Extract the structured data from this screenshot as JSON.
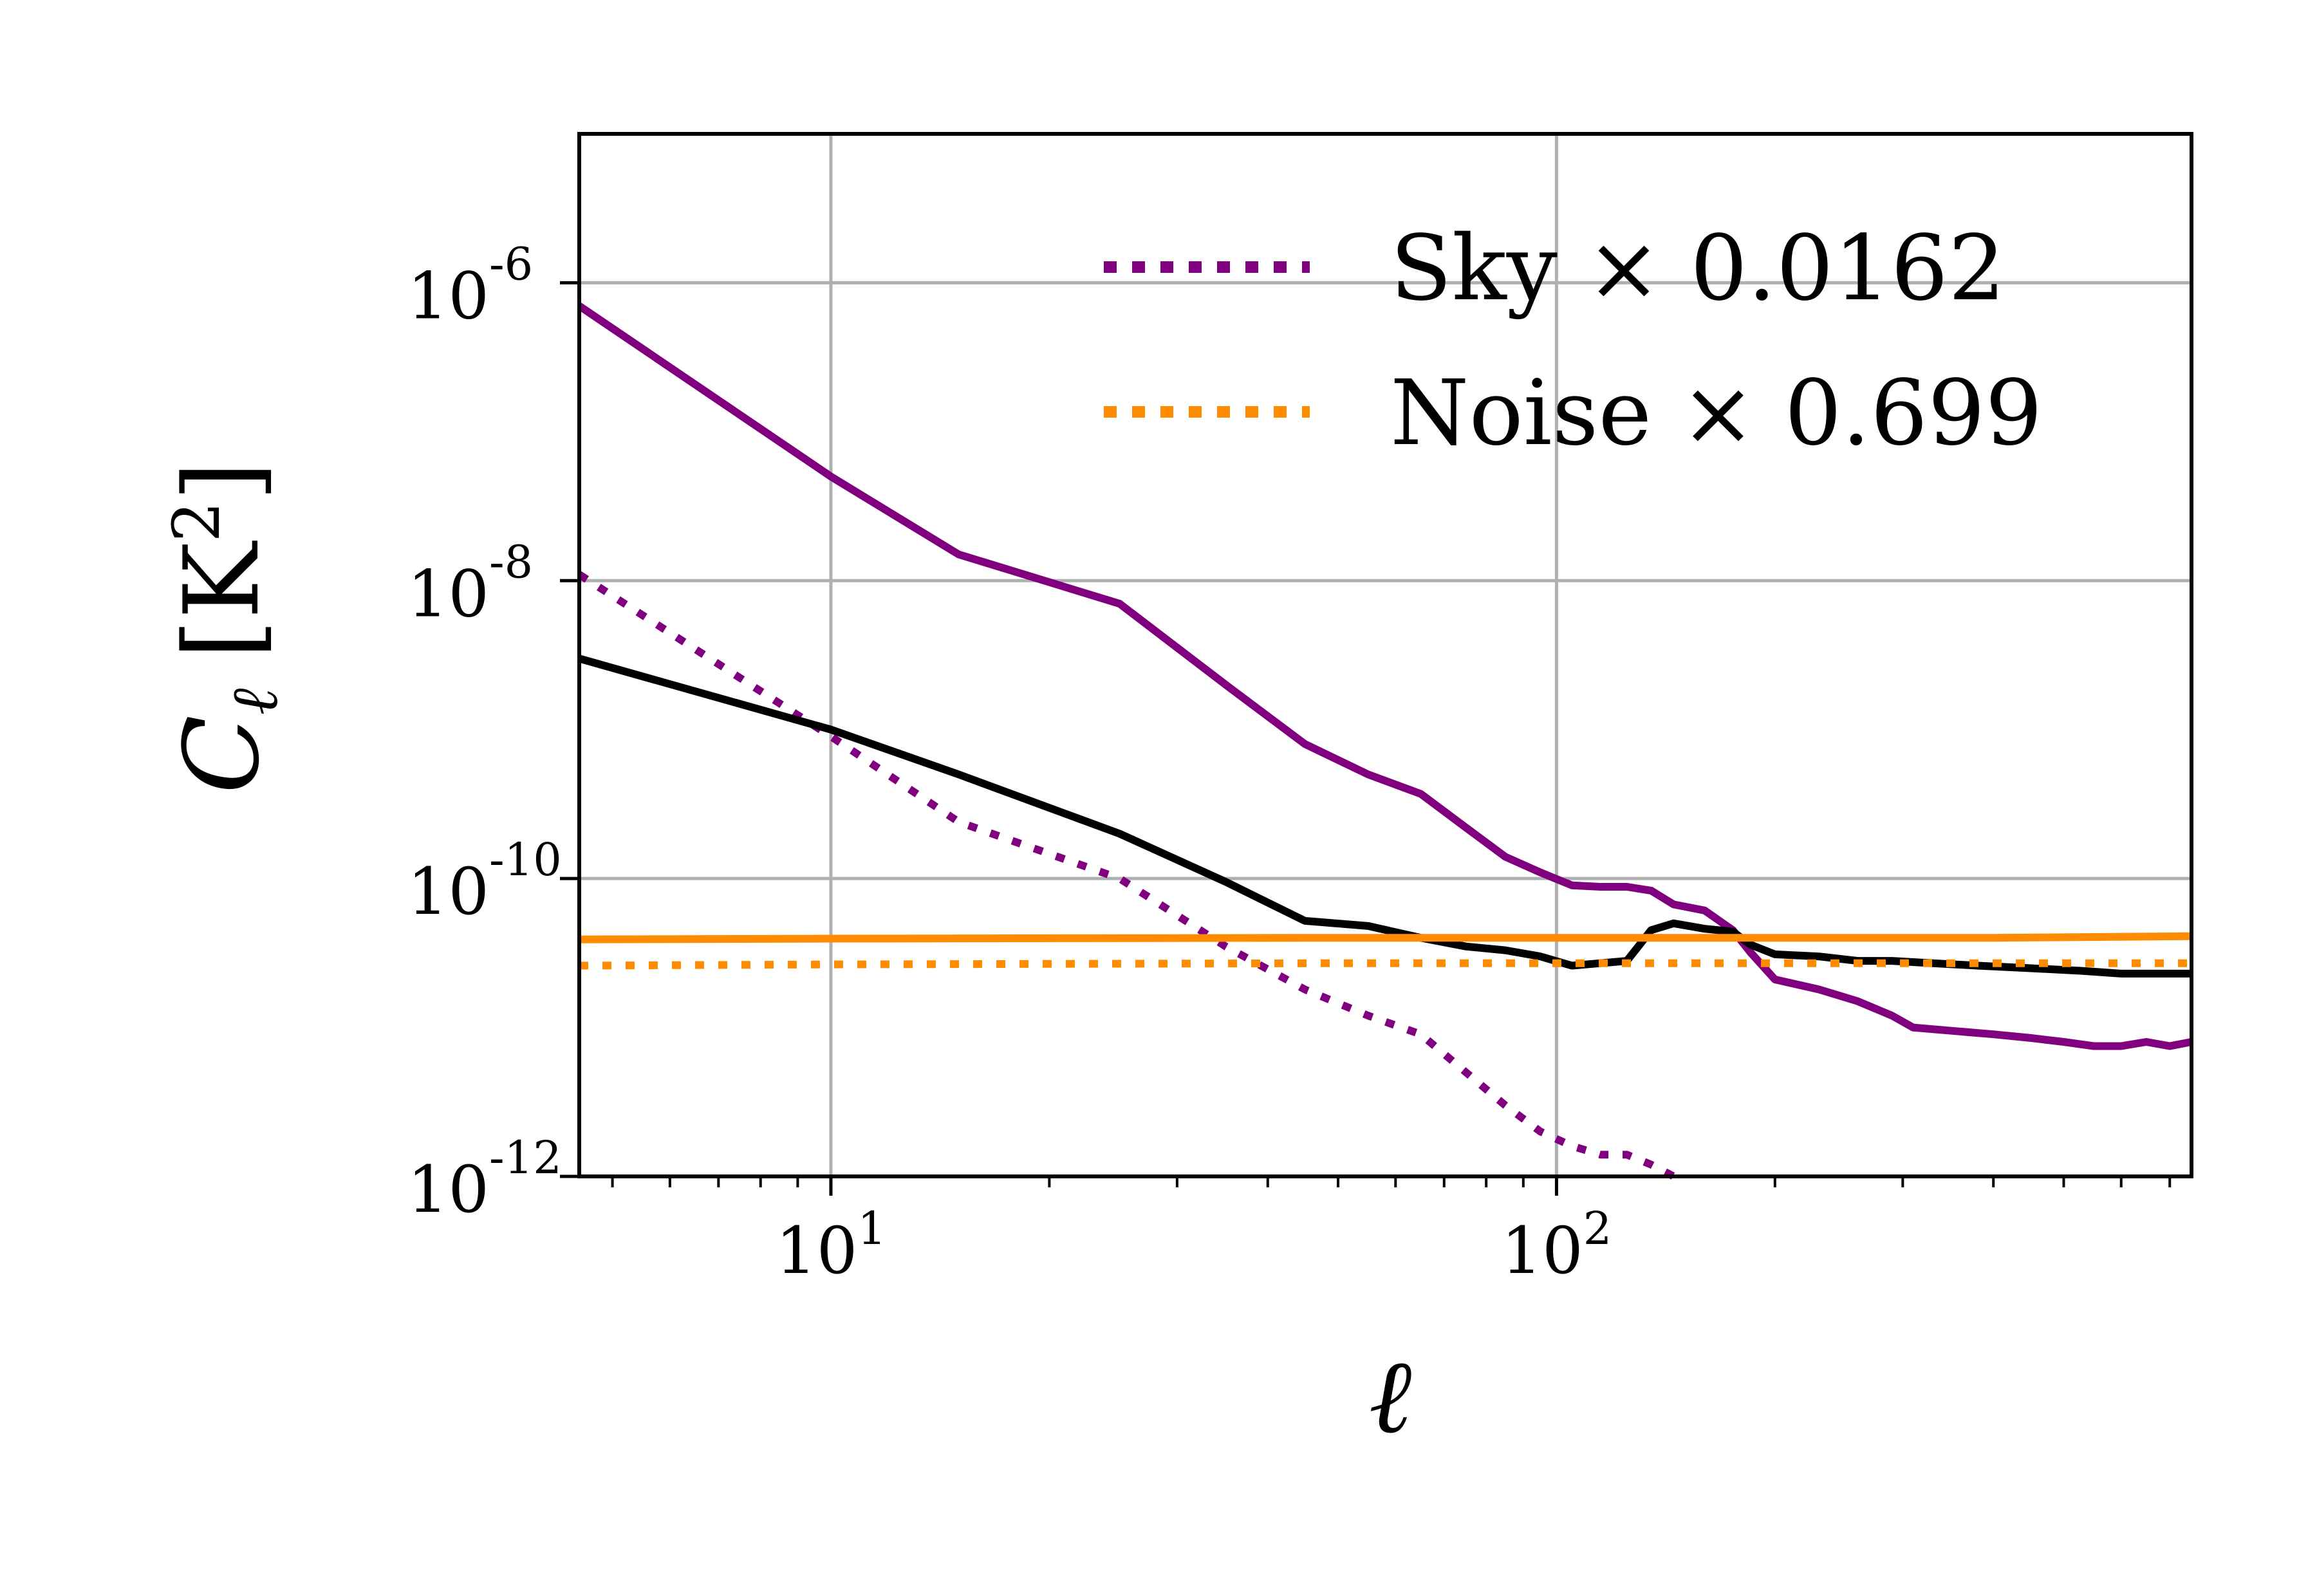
{
  "chart_data": {
    "type": "line",
    "xscale": "log",
    "yscale": "log",
    "xlim": [
      4.5,
      750
    ],
    "ylim": [
      1e-12,
      1e-05
    ],
    "grid": true,
    "legend_position": "top-right",
    "xlabel": "ℓ",
    "ylabel_main": "C",
    "ylabel_sub": "ℓ",
    "ylabel_unit": "[K",
    "ylabel_unit_sup": "2",
    "ylabel_unit_close": "]",
    "x_ticks": [
      {
        "value": 10,
        "base": "10",
        "exp": "1"
      },
      {
        "value": 100,
        "base": "10",
        "exp": "2"
      }
    ],
    "y_ticks": [
      {
        "value": 1e-06,
        "base": "10",
        "exp": "-6"
      },
      {
        "value": 1e-08,
        "base": "10",
        "exp": "-8"
      },
      {
        "value": 1e-10,
        "base": "10",
        "exp": "-10"
      },
      {
        "value": 1e-12,
        "base": "10",
        "exp": "-12"
      }
    ],
    "legend": [
      {
        "label": "Sky × 0.0162",
        "color": "#800080",
        "style": "dotted"
      },
      {
        "label": "Noise × 0.699",
        "color": "#ff8c00",
        "style": "dotted"
      }
    ],
    "series": [
      {
        "color": "#800080",
        "style": "solid",
        "x": [
          4.5,
          10,
          15,
          25,
          35,
          45,
          55,
          65,
          75,
          85,
          95,
          105,
          115,
          125,
          135,
          145,
          160,
          175,
          185,
          200,
          230,
          260,
          290,
          310,
          350,
          400,
          450,
          500,
          550,
          600,
          650,
          700,
          750
        ],
        "y": [
          7e-07,
          5e-08,
          1.5e-08,
          7e-09,
          2e-09,
          8e-10,
          5e-10,
          3.7e-10,
          2.2e-10,
          1.4e-10,
          1.1e-10,
          9e-11,
          8.8e-11,
          8.8e-11,
          8.3e-11,
          6.7e-11,
          6.1e-11,
          4.5e-11,
          3.2e-11,
          2.1e-11,
          1.8e-11,
          1.5e-11,
          1.2e-11,
          1e-11,
          9.5e-12,
          9e-12,
          8.5e-12,
          8e-12,
          7.5e-12,
          7.5e-12,
          8e-12,
          7.5e-12,
          8e-12
        ]
      },
      {
        "color": "#800080",
        "style": "dotted",
        "x": [
          4.5,
          10,
          15,
          25,
          35,
          45,
          55,
          65,
          75,
          85,
          95,
          105,
          115,
          125,
          135,
          145
        ],
        "y": [
          1.1e-08,
          9e-10,
          2.4e-10,
          1e-10,
          3.5e-11,
          1.8e-11,
          1.2e-11,
          9e-12,
          5e-12,
          3e-12,
          2e-12,
          1.6e-12,
          1.4e-12,
          1.4e-12,
          1.2e-12,
          1e-12
        ]
      },
      {
        "color": "#000000",
        "style": "solid",
        "x": [
          4.5,
          10,
          15,
          25,
          35,
          45,
          55,
          65,
          75,
          85,
          95,
          105,
          115,
          125,
          135,
          145,
          160,
          175,
          185,
          200,
          230,
          260,
          290,
          330,
          380,
          450,
          530,
          600,
          680,
          750
        ],
        "y": [
          3e-09,
          1e-09,
          5e-10,
          2e-10,
          9.5e-11,
          5.2e-11,
          4.8e-11,
          4e-11,
          3.5e-11,
          3.3e-11,
          3e-11,
          2.6e-11,
          2.7e-11,
          2.8e-11,
          4.5e-11,
          5e-11,
          4.6e-11,
          4.4e-11,
          3.6e-11,
          3.1e-11,
          3e-11,
          2.8e-11,
          2.8e-11,
          2.7e-11,
          2.6e-11,
          2.5e-11,
          2.4e-11,
          2.3e-11,
          2.3e-11,
          2.3e-11
        ]
      },
      {
        "color": "#ff8c00",
        "style": "solid",
        "x": [
          4.5,
          10,
          50,
          100,
          200,
          400,
          750
        ],
        "y": [
          3.9e-11,
          3.95e-11,
          4e-11,
          4e-11,
          4e-11,
          4e-11,
          4.1e-11
        ]
      },
      {
        "color": "#ff8c00",
        "style": "dotted",
        "x": [
          4.5,
          10,
          50,
          100,
          200,
          400,
          750
        ],
        "y": [
          2.6e-11,
          2.65e-11,
          2.7e-11,
          2.7e-11,
          2.7e-11,
          2.7e-11,
          2.7e-11
        ]
      }
    ]
  }
}
